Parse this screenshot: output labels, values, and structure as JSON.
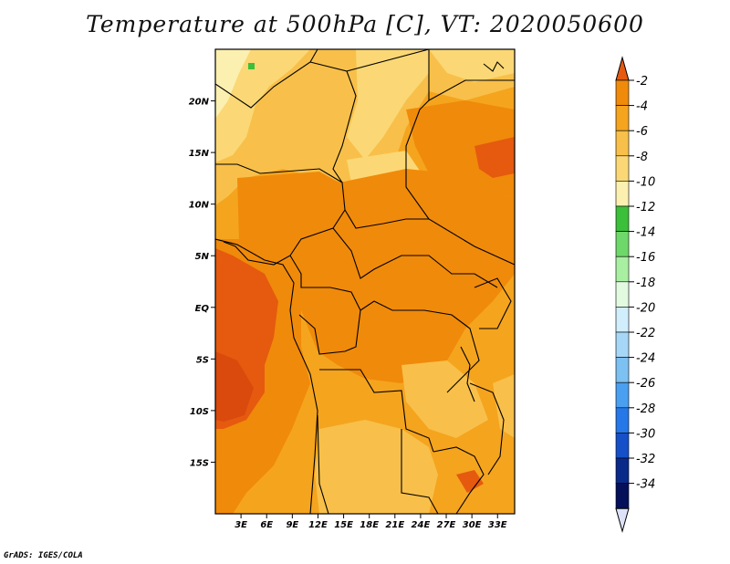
{
  "title": "Temperature at 500hPa [C], VT: 2020050600",
  "credit": "GrADS: IGES/COLA",
  "map": {
    "lon_range": [
      0,
      35
    ],
    "lat_range": [
      -20,
      25
    ],
    "x_ticks": [
      "3E",
      "6E",
      "9E",
      "12E",
      "15E",
      "18E",
      "21E",
      "24E",
      "27E",
      "30E",
      "33E"
    ],
    "x_tick_values": [
      3,
      6,
      9,
      12,
      15,
      18,
      21,
      24,
      27,
      30,
      33
    ],
    "y_ticks": [
      "20N",
      "15N",
      "10N",
      "5N",
      "EQ",
      "5S",
      "10S",
      "15S"
    ],
    "y_tick_values": [
      20,
      15,
      10,
      5,
      0,
      -5,
      -10,
      -15
    ]
  },
  "colorbar": {
    "labels": [
      "-2",
      "-4",
      "-6",
      "-8",
      "-10",
      "-12",
      "-14",
      "-16",
      "-18",
      "-20",
      "-22",
      "-24",
      "-26",
      "-28",
      "-30",
      "-32",
      "-34"
    ],
    "colors": [
      "#e55a0f",
      "#f08a0a",
      "#f5a41e",
      "#f8c04a",
      "#fbd875",
      "#fbf0b0",
      "#3cbf3a",
      "#6fd86a",
      "#a9efa2",
      "#e2fae0",
      "#d0eefc",
      "#a7d7f7",
      "#7dc0f2",
      "#4a9ff0",
      "#2677e8",
      "#1550c8",
      "#0a2a8a",
      "#05105a",
      "#dde2f8"
    ]
  }
}
